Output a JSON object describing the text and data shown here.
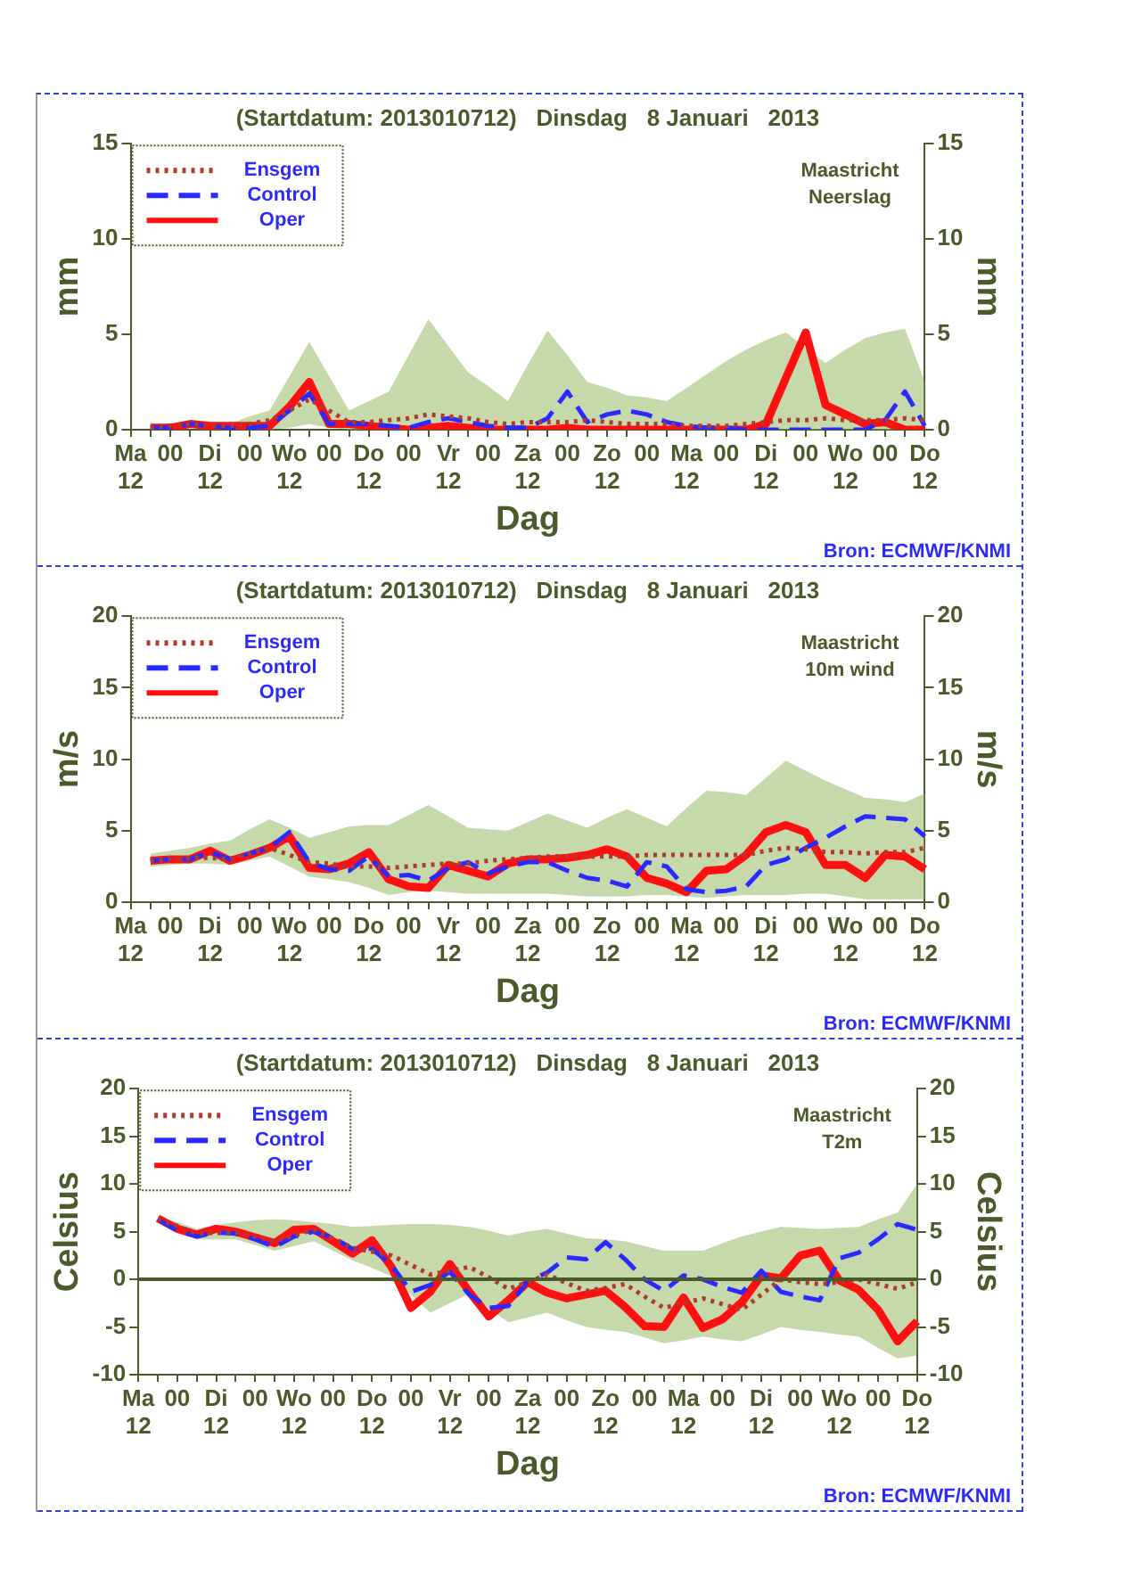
{
  "chart_data": [
    {
      "type": "line",
      "title": "(Startdatum: 2013010712)   Dinsdag   8 Januari   2013",
      "xlabel": "Dag",
      "ylabel": "mm",
      "y2label": "mm",
      "annotations": [
        "Maastricht",
        "Neerslag",
        "Bron: ECMWF/KNMI"
      ],
      "legend": "top left",
      "grid": false,
      "marker": "none",
      "categories": [
        "Ma\n12",
        null,
        "00",
        null,
        "Di\n12",
        null,
        "00",
        null,
        "Wo\n12",
        null,
        "00",
        null,
        "Do\n12",
        null,
        "00",
        null,
        "Vr\n12",
        null,
        "00",
        null,
        "Za\n12",
        null,
        "00",
        null,
        "Zo\n12",
        null,
        "00",
        null,
        "Ma\n12",
        null,
        "00",
        null,
        "Di\n12",
        null,
        "00",
        null,
        "Wo\n12",
        null,
        "00",
        null,
        "Do\n12"
      ],
      "ylim": [
        0,
        15
      ],
      "yticks": [
        0,
        5,
        10,
        15
      ],
      "y2lim": [
        0,
        15
      ],
      "y2ticks": [
        0,
        5,
        10,
        15
      ],
      "series": [
        {
          "name": "Ensgem",
          "color": "#b03a2e",
          "line_style": "dotted",
          "values": [
            null,
            0.1,
            0.2,
            0.3,
            0.2,
            0.2,
            0.3,
            0.5,
            1.0,
            1.6,
            1.0,
            0.4,
            0.4,
            0.5,
            0.6,
            0.8,
            0.7,
            0.6,
            0.4,
            0.3,
            0.4,
            0.4,
            0.4,
            0.5,
            0.4,
            0.3,
            0.3,
            0.3,
            0.2,
            0.2,
            0.2,
            0.3,
            0.4,
            0.5,
            0.5,
            0.6,
            0.5,
            0.5,
            0.5,
            0.6,
            0.5
          ],
          "lower": [
            null,
            0,
            0.1,
            0.1,
            0,
            0,
            0,
            0,
            0.1,
            0.3,
            0.1,
            0,
            0,
            0,
            0,
            0,
            0,
            0,
            0,
            0,
            0,
            0,
            0,
            0,
            0,
            0,
            0,
            0,
            0,
            0,
            0,
            0,
            0,
            0,
            0,
            0,
            0,
            0,
            0,
            0,
            0
          ],
          "upper": [
            null,
            0.2,
            0.3,
            0.4,
            0.4,
            0.3,
            0.7,
            1.0,
            2.8,
            4.6,
            2.8,
            1.0,
            1.5,
            2.0,
            3.9,
            5.8,
            4.4,
            3.0,
            2.3,
            1.5,
            3.4,
            5.2,
            3.9,
            2.5,
            2.2,
            1.8,
            1.7,
            1.5,
            2.2,
            2.9,
            3.6,
            4.2,
            4.7,
            5.1,
            4.3,
            3.5,
            4.2,
            4.8,
            5.1,
            5.3,
            2.5
          ]
        },
        {
          "name": "Control",
          "color": "#2a2aff",
          "line_style": "dashed",
          "values": [
            null,
            0.1,
            0.1,
            0.3,
            0.2,
            0.1,
            0.1,
            0.2,
            1,
            1.9,
            0.3,
            0.3,
            0.3,
            0.2,
            0.1,
            0.4,
            0.6,
            0.4,
            0.2,
            0.1,
            0.1,
            0.6,
            2,
            0.4,
            0.8,
            1,
            0.8,
            0.4,
            0.2,
            0.1,
            0.1,
            0,
            0,
            0,
            0,
            0,
            0,
            0,
            0.5,
            2,
            0.2
          ]
        },
        {
          "name": "Oper",
          "color": "#ff1010",
          "line_style": "solid",
          "values": [
            null,
            0.1,
            0.1,
            0.3,
            0.2,
            0.2,
            0.2,
            0.2,
            1.2,
            2.5,
            0.3,
            0.3,
            0.2,
            0.1,
            0,
            0.1,
            0.2,
            0.1,
            0,
            0,
            0,
            0,
            0.1,
            0,
            0,
            0,
            0,
            0,
            0,
            0,
            0,
            0,
            0.3,
            2.7,
            5.1,
            1.3,
            0.8,
            0.3,
            0.4,
            0,
            0
          ]
        }
      ]
    },
    {
      "type": "line",
      "title": "(Startdatum: 2013010712)   Dinsdag   8 Januari   2013",
      "xlabel": "Dag",
      "ylabel": "m/s",
      "y2label": "m/s",
      "annotations": [
        "Maastricht",
        "10m wind",
        "Bron: ECMWF/KNMI"
      ],
      "legend": "top left",
      "grid": false,
      "marker": "none",
      "categories": [
        "Ma\n12",
        null,
        "00",
        null,
        "Di\n12",
        null,
        "00",
        null,
        "Wo\n12",
        null,
        "00",
        null,
        "Do\n12",
        null,
        "00",
        null,
        "Vr\n12",
        null,
        "00",
        null,
        "Za\n12",
        null,
        "00",
        null,
        "Zo\n12",
        null,
        "00",
        null,
        "Ma\n12",
        null,
        "00",
        null,
        "Di\n12",
        null,
        "00",
        null,
        "Wo\n12",
        null,
        "00",
        null,
        "Do\n12"
      ],
      "ylim": [
        0,
        20
      ],
      "yticks": [
        0,
        5,
        10,
        15,
        20
      ],
      "y2lim": [
        0,
        20
      ],
      "y2ticks": [
        0,
        5,
        10,
        15,
        20
      ],
      "series": [
        {
          "name": "Ensgem",
          "color": "#b03a2e",
          "line_style": "dotted",
          "values": [
            null,
            2.9,
            3.0,
            3.1,
            3.1,
            3.0,
            3.4,
            3.8,
            3.3,
            2.8,
            2.7,
            2.5,
            2.5,
            2.4,
            2.5,
            2.6,
            2.7,
            2.7,
            2.9,
            3.0,
            3.1,
            3.2,
            3.2,
            3.2,
            3.2,
            3.2,
            3.3,
            3.3,
            3.3,
            3.3,
            3.3,
            3.3,
            3.6,
            3.8,
            3.7,
            3.5,
            3.5,
            3.4,
            3.5,
            3.5,
            3.8
          ],
          "lower": [
            null,
            2.5,
            2.6,
            2.7,
            2.7,
            2.6,
            2.9,
            3.2,
            2.5,
            1.8,
            1.6,
            1.4,
            1.0,
            0.5,
            0.7,
            0.8,
            0.7,
            0.6,
            0.6,
            0.6,
            0.6,
            0.6,
            0.5,
            0.4,
            0.4,
            0.4,
            0.5,
            0.5,
            0.4,
            0.3,
            0.4,
            0.5,
            0.5,
            0.5,
            0.6,
            0.6,
            0.4,
            0.2,
            0.2,
            0.2,
            0.2
          ],
          "upper": [
            null,
            3.4,
            3.6,
            3.8,
            4.1,
            4.3,
            5.1,
            5.8,
            5.2,
            4.5,
            4.9,
            5.3,
            5.4,
            5.4,
            6.1,
            6.8,
            6.0,
            5.2,
            5.1,
            5.0,
            5.6,
            6.2,
            5.7,
            5.2,
            5.9,
            6.5,
            5.9,
            5.3,
            6.6,
            7.8,
            7.7,
            7.5,
            8.7,
            9.9,
            9.2,
            8.5,
            7.9,
            7.3,
            7.2,
            7.0,
            7.6
          ]
        },
        {
          "name": "Control",
          "color": "#2a2aff",
          "line_style": "dashed",
          "values": [
            null,
            2.9,
            3,
            3,
            3.5,
            3,
            3.4,
            3.8,
            4.9,
            2.8,
            2.3,
            2.2,
            3.2,
            1.8,
            1.9,
            1.5,
            2.4,
            2.8,
            2,
            2.5,
            2.8,
            2.8,
            2.2,
            1.7,
            1.5,
            1.1,
            2.8,
            2.5,
            0.9,
            0.7,
            0.8,
            1.1,
            2.6,
            3,
            3.8,
            4.5,
            5.3,
            6,
            5.9,
            5.8,
            4.6
          ]
        },
        {
          "name": "Oper",
          "color": "#ff1010",
          "line_style": "solid",
          "values": [
            null,
            2.9,
            3,
            3,
            3.6,
            2.9,
            3.3,
            3.8,
            4.6,
            2.4,
            2.3,
            2.7,
            3.5,
            1.6,
            1.1,
            1,
            2.6,
            2.2,
            1.8,
            2.7,
            3,
            3,
            3.1,
            3.3,
            3.7,
            3.2,
            1.7,
            1.3,
            0.7,
            2.2,
            2.3,
            3.3,
            4.9,
            5.4,
            4.9,
            2.6,
            2.6,
            1.7,
            3.3,
            3.2,
            2.3
          ]
        }
      ]
    },
    {
      "type": "line",
      "title": "(Startdatum: 2013010712)   Dinsdag   8 Januari   2013",
      "xlabel": "Dag",
      "ylabel": "Celsius",
      "y2label": "Celsius",
      "annotations": [
        "Maastricht",
        "T2m",
        "Bron: ECMWF/KNMI"
      ],
      "legend": "top left",
      "grid": false,
      "marker": "none",
      "categories": [
        "Ma\n12",
        null,
        "00",
        null,
        "Di\n12",
        null,
        "00",
        null,
        "Wo\n12",
        null,
        "00",
        null,
        "Do\n12",
        null,
        "00",
        null,
        "Vr\n12",
        null,
        "00",
        null,
        "Za\n12",
        null,
        "00",
        null,
        "Zo\n12",
        null,
        "00",
        null,
        "Ma\n12",
        null,
        "00",
        null,
        "Di\n12",
        null,
        "00",
        null,
        "Wo\n12",
        null,
        "00",
        null,
        "Do\n12"
      ],
      "ylim": [
        -10,
        20
      ],
      "yticks": [
        -10,
        -5,
        0,
        5,
        10,
        15,
        20
      ],
      "y2lim": [
        -10,
        20
      ],
      "y2ticks": [
        -10,
        -5,
        0,
        5,
        10,
        15,
        20
      ],
      "ref_lines": [
        {
          "axis": "y",
          "value": 0,
          "color": "#4b5a2a"
        }
      ],
      "series": [
        {
          "name": "Ensgem",
          "color": "#b03a2e",
          "line_style": "dotted",
          "values": [
            null,
            6.3,
            5.6,
            4.8,
            4.9,
            4.9,
            4.5,
            4.0,
            4.6,
            5.2,
            4.3,
            3.3,
            2.9,
            2.5,
            1.5,
            0.5,
            0.9,
            1.3,
            0.2,
            -1.0,
            -0.3,
            0.5,
            -0.4,
            -1.2,
            -0.9,
            -0.5,
            -1.8,
            -3.0,
            -2.5,
            -2.0,
            -2.6,
            -3.2,
            -1.6,
            0.0,
            -0.3,
            -0.5,
            -0.3,
            0.0,
            -0.5,
            -1.0,
            -0.3
          ],
          "lower": [
            null,
            6.0,
            5.1,
            4.2,
            4.2,
            4.2,
            3.6,
            3.0,
            3.5,
            4.0,
            3.0,
            2.0,
            1.2,
            0.3,
            -1.6,
            -3.5,
            -2.5,
            -1.5,
            -3.0,
            -4.5,
            -4.0,
            -3.5,
            -4.3,
            -5.0,
            -5.3,
            -5.5,
            -6.1,
            -6.7,
            -6.4,
            -6.0,
            -6.3,
            -6.5,
            -5.8,
            -5.0,
            -5.3,
            -5.5,
            -5.8,
            -6.0,
            -7.2,
            -8.3,
            -8.0
          ],
          "upper": [
            null,
            6.6,
            6.0,
            5.3,
            5.7,
            6.0,
            6.2,
            6.3,
            6.2,
            6.0,
            5.8,
            5.5,
            5.6,
            5.7,
            5.8,
            5.8,
            5.7,
            5.5,
            5.1,
            4.6,
            5.0,
            5.3,
            4.8,
            4.3,
            4.2,
            4.0,
            3.5,
            3.0,
            3.0,
            3.0,
            3.8,
            4.5,
            5.0,
            5.5,
            5.4,
            5.3,
            5.4,
            5.5,
            6.3,
            7.0,
            10.0
          ]
        },
        {
          "name": "Control",
          "color": "#2a2aff",
          "line_style": "dashed",
          "values": [
            null,
            6.3,
            5.1,
            4.5,
            4.9,
            4.8,
            4.2,
            3.4,
            4.5,
            5,
            4.4,
            3.2,
            3.2,
            1.5,
            -1.3,
            -0.6,
            0.8,
            -1.6,
            -3,
            -2.8,
            -0.2,
            0.7,
            2.3,
            2.1,
            3.9,
            2.1,
            0,
            -1.2,
            0.4,
            0,
            -0.8,
            -1.4,
            0.9,
            -1.3,
            -1.8,
            -2.2,
            2.2,
            2.8,
            4.2,
            5.8,
            5.2
          ]
        },
        {
          "name": "Oper",
          "color": "#ff1010",
          "line_style": "solid",
          "values": [
            null,
            6.4,
            5.3,
            4.7,
            5.3,
            5,
            4.4,
            3.8,
            5.2,
            5.3,
            4,
            2.7,
            4.1,
            1.3,
            -3,
            -1.3,
            1.6,
            -1.3,
            -3.9,
            -2.2,
            -0.3,
            -1.4,
            -2,
            -1.6,
            -1.2,
            -2.9,
            -4.9,
            -5,
            -1.9,
            -5.1,
            -4.2,
            -2.4,
            0.4,
            0.1,
            2.5,
            3,
            -0.1,
            -1.1,
            -3.2,
            -6.5,
            -4.4
          ]
        }
      ]
    }
  ]
}
